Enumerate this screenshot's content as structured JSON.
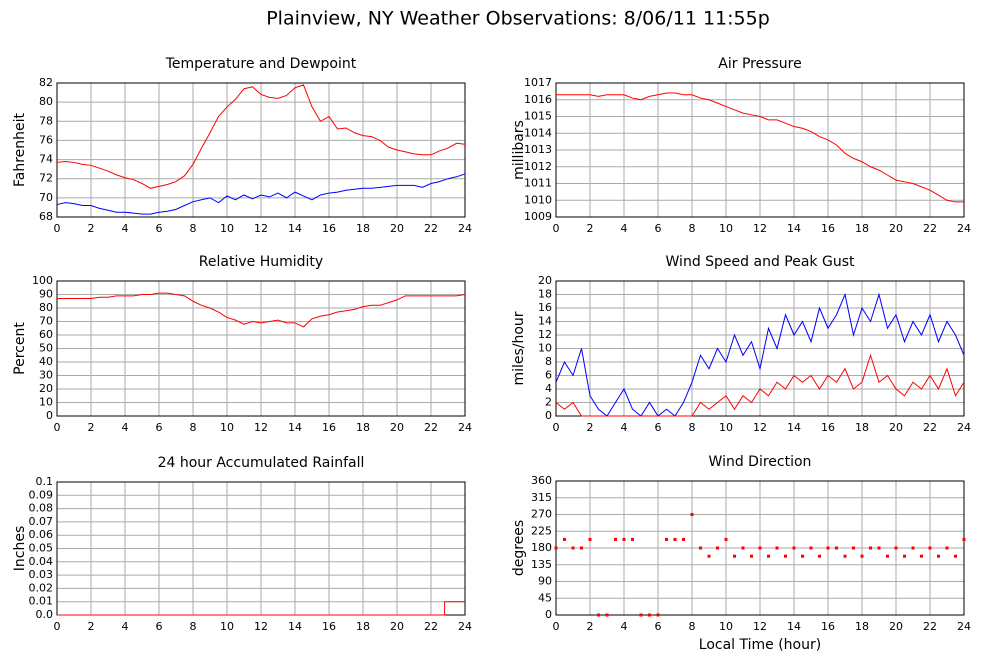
{
  "title": "Plainview, NY Weather Observations: 8/06/11 11:55p",
  "chart_data": [
    {
      "type": "line",
      "title": "Temperature and Dewpoint",
      "ylabel": "Fahrenheit",
      "grid": true,
      "xlim": [
        0,
        24
      ],
      "xticks": [
        0,
        2,
        4,
        6,
        8,
        10,
        12,
        14,
        16,
        18,
        20,
        22,
        24
      ],
      "ylim": [
        68,
        82
      ],
      "yticks": [
        68,
        70,
        72,
        74,
        76,
        78,
        80,
        82
      ],
      "x": [
        0,
        0.5,
        1,
        1.5,
        2,
        2.5,
        3,
        3.5,
        4,
        4.5,
        5,
        5.5,
        6,
        6.5,
        7,
        7.5,
        8,
        8.5,
        9,
        9.5,
        10,
        10.5,
        11,
        11.5,
        12,
        12.5,
        13,
        13.5,
        14,
        14.5,
        15,
        15.5,
        16,
        16.5,
        17,
        17.5,
        18,
        18.5,
        19,
        19.5,
        20,
        20.5,
        21,
        21.5,
        22,
        22.5,
        23,
        23.5,
        24
      ],
      "series": [
        {
          "color": "#ff0000",
          "values": [
            73.7,
            73.8,
            73.7,
            73.5,
            73.4,
            73.1,
            72.8,
            72.4,
            72.1,
            71.9,
            71.5,
            71.0,
            71.2,
            71.4,
            71.7,
            72.3,
            73.5,
            75.2,
            76.8,
            78.5,
            79.5,
            80.3,
            81.4,
            81.6,
            80.8,
            80.5,
            80.4,
            80.7,
            81.5,
            81.8,
            79.5,
            78.0,
            78.5,
            77.2,
            77.3,
            76.8,
            76.5,
            76.4,
            76.0,
            75.3,
            75.0,
            74.8,
            74.6,
            74.5,
            74.5,
            74.9,
            75.2,
            75.7,
            75.6
          ]
        },
        {
          "color": "#0000ff",
          "values": [
            69.3,
            69.5,
            69.4,
            69.2,
            69.2,
            68.9,
            68.7,
            68.5,
            68.5,
            68.4,
            68.3,
            68.3,
            68.5,
            68.6,
            68.8,
            69.2,
            69.6,
            69.8,
            70.0,
            69.5,
            70.2,
            69.8,
            70.3,
            69.9,
            70.3,
            70.1,
            70.5,
            70.0,
            70.6,
            70.2,
            69.8,
            70.3,
            70.5,
            70.6,
            70.8,
            70.9,
            71.0,
            71.0,
            71.1,
            71.2,
            71.3,
            71.3,
            71.3,
            71.1,
            71.5,
            71.7,
            72.0,
            72.2,
            72.5
          ]
        }
      ]
    },
    {
      "type": "line",
      "title": "Air Pressure",
      "ylabel": "millibars",
      "grid": true,
      "xlim": [
        0,
        24
      ],
      "xticks": [
        0,
        2,
        4,
        6,
        8,
        10,
        12,
        14,
        16,
        18,
        20,
        22,
        24
      ],
      "ylim": [
        1009,
        1017
      ],
      "yticks": [
        1009,
        1010,
        1011,
        1012,
        1013,
        1014,
        1015,
        1016,
        1017
      ],
      "x": [
        0,
        0.5,
        1,
        1.5,
        2,
        2.5,
        3,
        3.5,
        4,
        4.5,
        5,
        5.5,
        6,
        6.5,
        7,
        7.5,
        8,
        8.5,
        9,
        9.5,
        10,
        10.5,
        11,
        11.5,
        12,
        12.5,
        13,
        13.5,
        14,
        14.5,
        15,
        15.5,
        16,
        16.5,
        17,
        17.5,
        18,
        18.5,
        19,
        19.5,
        20,
        20.5,
        21,
        21.5,
        22,
        22.5,
        23,
        23.5,
        24
      ],
      "series": [
        {
          "color": "#ff0000",
          "values": [
            1016.3,
            1016.3,
            1016.3,
            1016.3,
            1016.3,
            1016.2,
            1016.3,
            1016.3,
            1016.3,
            1016.1,
            1016.0,
            1016.2,
            1016.3,
            1016.4,
            1016.4,
            1016.3,
            1016.3,
            1016.1,
            1016.0,
            1015.8,
            1015.6,
            1015.4,
            1015.2,
            1015.1,
            1015.0,
            1014.8,
            1014.8,
            1014.6,
            1014.4,
            1014.3,
            1014.1,
            1013.8,
            1013.6,
            1013.3,
            1012.8,
            1012.5,
            1012.3,
            1012.0,
            1011.8,
            1011.5,
            1011.2,
            1011.1,
            1011.0,
            1010.8,
            1010.6,
            1010.3,
            1010.0,
            1009.9,
            1009.9
          ]
        }
      ]
    },
    {
      "type": "line",
      "title": "Relative Humidity",
      "ylabel": "Percent",
      "grid": true,
      "xlim": [
        0,
        24
      ],
      "xticks": [
        0,
        2,
        4,
        6,
        8,
        10,
        12,
        14,
        16,
        18,
        20,
        22,
        24
      ],
      "ylim": [
        0,
        100
      ],
      "yticks": [
        0,
        10,
        20,
        30,
        40,
        50,
        60,
        70,
        80,
        90,
        100
      ],
      "x": [
        0,
        0.5,
        1,
        1.5,
        2,
        2.5,
        3,
        3.5,
        4,
        4.5,
        5,
        5.5,
        6,
        6.5,
        7,
        7.5,
        8,
        8.5,
        9,
        9.5,
        10,
        10.5,
        11,
        11.5,
        12,
        12.5,
        13,
        13.5,
        14,
        14.5,
        15,
        15.5,
        16,
        16.5,
        17,
        17.5,
        18,
        18.5,
        19,
        19.5,
        20,
        20.5,
        21,
        21.5,
        22,
        22.5,
        23,
        23.5,
        24
      ],
      "series": [
        {
          "color": "#ff0000",
          "values": [
            87,
            87,
            87,
            87,
            87,
            88,
            88,
            89,
            89,
            89,
            90,
            90,
            91,
            91,
            90,
            89,
            85,
            82,
            80,
            77,
            73,
            71,
            68,
            70,
            69,
            70,
            71,
            69,
            69,
            66,
            72,
            74,
            75,
            77,
            78,
            79,
            81,
            82,
            82,
            84,
            86,
            89,
            89,
            89,
            89,
            89,
            89,
            89,
            90
          ]
        }
      ]
    },
    {
      "type": "line",
      "title": "Wind Speed and Peak Gust",
      "ylabel": "miles/hour",
      "grid": true,
      "xlim": [
        0,
        24
      ],
      "xticks": [
        0,
        2,
        4,
        6,
        8,
        10,
        12,
        14,
        16,
        18,
        20,
        22,
        24
      ],
      "ylim": [
        0,
        20
      ],
      "yticks": [
        0,
        2,
        4,
        6,
        8,
        10,
        12,
        14,
        16,
        18,
        20
      ],
      "x": [
        0,
        0.5,
        1,
        1.5,
        2,
        2.5,
        3,
        3.5,
        4,
        4.5,
        5,
        5.5,
        6,
        6.5,
        7,
        7.5,
        8,
        8.5,
        9,
        9.5,
        10,
        10.5,
        11,
        11.5,
        12,
        12.5,
        13,
        13.5,
        14,
        14.5,
        15,
        15.5,
        16,
        16.5,
        17,
        17.5,
        18,
        18.5,
        19,
        19.5,
        20,
        20.5,
        21,
        21.5,
        22,
        22.5,
        23,
        23.5,
        24
      ],
      "series": [
        {
          "color": "#0000ff",
          "values": [
            5,
            8,
            6,
            10,
            3,
            1,
            0,
            2,
            4,
            1,
            0,
            2,
            0,
            1,
            0,
            2,
            5,
            9,
            7,
            10,
            8,
            12,
            9,
            11,
            7,
            13,
            10,
            15,
            12,
            14,
            11,
            16,
            13,
            15,
            18,
            12,
            16,
            14,
            18,
            13,
            15,
            11,
            14,
            12,
            15,
            11,
            14,
            12,
            9
          ]
        },
        {
          "color": "#ff0000",
          "values": [
            2,
            1,
            2,
            0,
            0,
            0,
            0,
            0,
            0,
            0,
            0,
            0,
            0,
            0,
            0,
            0,
            0,
            2,
            1,
            2,
            3,
            1,
            3,
            2,
            4,
            3,
            5,
            4,
            6,
            5,
            6,
            4,
            6,
            5,
            7,
            4,
            5,
            9,
            5,
            6,
            4,
            3,
            5,
            4,
            6,
            4,
            7,
            3,
            5
          ]
        }
      ]
    },
    {
      "type": "line",
      "title": "24 hour Accumulated Rainfall",
      "ylabel": "Inches",
      "grid": true,
      "xlim": [
        0,
        24
      ],
      "xticks": [
        0,
        2,
        4,
        6,
        8,
        10,
        12,
        14,
        16,
        18,
        20,
        22,
        24
      ],
      "ylim": [
        0,
        0.1
      ],
      "yticks": [
        {
          "value": 0,
          "label": "0.0"
        },
        0.01,
        0.02,
        0.03,
        0.04,
        0.05,
        0.06,
        0.07,
        0.08,
        0.09,
        0.1
      ],
      "x": [
        0,
        22.8,
        22.8,
        24
      ],
      "series": [
        {
          "color": "#ff0000",
          "values": [
            0,
            0,
            0.01,
            0.01
          ]
        }
      ]
    },
    {
      "type": "scatter",
      "title": "Wind Direction",
      "ylabel": "degrees",
      "xlabel": "Local Time (hour)",
      "grid": true,
      "xlim": [
        0,
        24
      ],
      "xticks": [
        0,
        2,
        4,
        6,
        8,
        10,
        12,
        14,
        16,
        18,
        20,
        22,
        24
      ],
      "ylim": [
        0,
        360
      ],
      "yticks": [
        0,
        45,
        90,
        135,
        180,
        225,
        270,
        315,
        360
      ],
      "x": [
        0,
        0.5,
        1,
        1.5,
        2,
        2.5,
        3,
        3.5,
        4,
        4.5,
        5,
        5.5,
        6,
        6.5,
        7,
        7.5,
        8,
        8.5,
        9,
        9.5,
        10,
        10.5,
        11,
        11.5,
        12,
        12.5,
        13,
        13.5,
        14,
        14.5,
        15,
        15.5,
        16,
        16.5,
        17,
        17.5,
        18,
        18.5,
        19,
        19.5,
        20,
        20.5,
        21,
        21.5,
        22,
        22.5,
        23,
        23.5,
        24
      ],
      "series": [
        {
          "color": "#ff0000",
          "values": [
            180,
            203,
            180,
            180,
            203,
            0,
            0,
            203,
            203,
            203,
            0,
            0,
            0,
            203,
            203,
            203,
            270,
            180,
            158,
            180,
            203,
            158,
            180,
            158,
            180,
            158,
            180,
            158,
            180,
            158,
            180,
            158,
            180,
            180,
            158,
            180,
            158,
            180,
            180,
            158,
            180,
            158,
            180,
            158,
            180,
            158,
            180,
            158,
            203
          ]
        }
      ]
    }
  ]
}
